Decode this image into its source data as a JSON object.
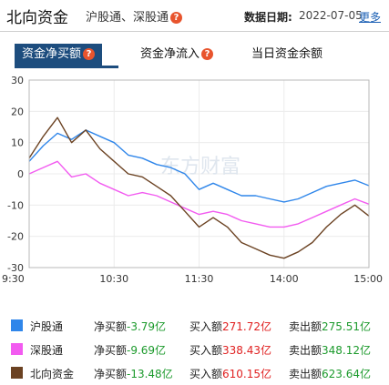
{
  "header": {
    "title": "北向资金",
    "subtitle": "沪股通、深股通",
    "help_glyph": "?",
    "date_label": "数据日期:",
    "date_value": "2022-07-05",
    "more_label": "更多"
  },
  "tabs": [
    {
      "label": "资金净买额",
      "active": true
    },
    {
      "label": "资金净流入",
      "active": false
    },
    {
      "label": "当日资金余额",
      "active": false
    }
  ],
  "watermark": "东方财富",
  "colors": {
    "hgt": "#2f86ea",
    "sgt": "#f25bf0",
    "north": "#6b4222",
    "tab_active": "#1d4d7e",
    "positive": "#e02020",
    "negative": "#1c9a2c"
  },
  "chart_data": {
    "type": "line",
    "x_ticks": [
      "9:30",
      "10:30",
      "11:30",
      "14:00",
      "15:00"
    ],
    "ylim": [
      -30,
      30
    ],
    "y_ticks": [
      30,
      20,
      10,
      0,
      -10,
      -20,
      -30
    ],
    "grid": true,
    "x": [
      "9:30",
      "9:40",
      "9:50",
      "10:00",
      "10:10",
      "10:20",
      "10:30",
      "10:40",
      "10:50",
      "11:00",
      "11:10",
      "11:20",
      "11:30",
      "13:10",
      "13:20",
      "13:30",
      "13:40",
      "13:50",
      "14:00",
      "14:10",
      "14:20",
      "14:30",
      "14:40",
      "14:50",
      "15:00"
    ],
    "series": [
      {
        "name": "沪股通",
        "values": [
          4,
          9,
          13,
          11,
          14,
          12,
          10,
          6,
          5,
          3,
          2,
          0,
          -5,
          -3,
          -5,
          -7,
          -7,
          -8,
          -9,
          -8,
          -6,
          -4,
          -3,
          -2,
          -3.79
        ]
      },
      {
        "name": "深股通",
        "values": [
          0,
          2,
          4,
          -1,
          0,
          -3,
          -5,
          -7,
          -6,
          -7,
          -9,
          -11,
          -13,
          -12,
          -13,
          -15,
          -16,
          -17,
          -17,
          -16,
          -14,
          -12,
          -10,
          -8,
          -9.69
        ]
      },
      {
        "name": "北向资金",
        "values": [
          5,
          12,
          18,
          10,
          14,
          8,
          4,
          0,
          -1,
          -4,
          -7,
          -12,
          -17,
          -14,
          -17,
          -22,
          -24,
          -26,
          -27,
          -25,
          -22,
          -17,
          -13,
          -10,
          -13.48
        ]
      }
    ]
  },
  "legend": [
    {
      "name": "沪股通",
      "net_label": "净买额",
      "net": "-3.79亿",
      "buy_label": "买入额",
      "buy": "271.72亿",
      "sell_label": "卖出额",
      "sell": "275.51亿"
    },
    {
      "name": "深股通",
      "net_label": "净买额",
      "net": "-9.69亿",
      "buy_label": "买入额",
      "buy": "338.43亿",
      "sell_label": "卖出额",
      "sell": "348.12亿"
    },
    {
      "name": "北向资金",
      "net_label": "净买额",
      "net": "-13.48亿",
      "buy_label": "买入额",
      "buy": "610.15亿",
      "sell_label": "卖出额",
      "sell": "623.64亿"
    }
  ]
}
